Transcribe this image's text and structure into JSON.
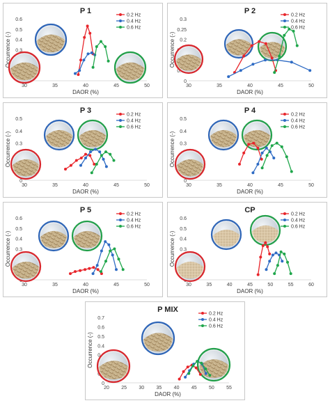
{
  "series_names": [
    "0.2 Hz",
    "0.4 Hz",
    "0.6 Hz"
  ],
  "colors": {
    "s02": "#e8252b",
    "s04": "#2e6bc4",
    "s06": "#1fa64b"
  },
  "chart_data": [
    {
      "type": "line",
      "title": "P 1",
      "xlabel": "DAOR (%)",
      "ylabel": "Occurrence (-)",
      "xlim": [
        30,
        50
      ],
      "ylim": [
        0,
        0.6
      ],
      "xticks": [
        "30",
        "35",
        "40",
        "45",
        "50"
      ],
      "yticks": [
        "0",
        "0.1",
        "0.2",
        "0.3",
        "0.4",
        "0.5",
        "0.6"
      ],
      "series": [
        {
          "name": "0.2 Hz",
          "x": [
            38.8,
            39.2,
            39.8,
            40.3,
            40.7,
            41.2
          ],
          "y": [
            0.06,
            0.2,
            0.42,
            0.53,
            0.46,
            0.26
          ]
        },
        {
          "name": "0.4 Hz",
          "x": [
            38.3,
            39.0,
            39.7,
            40.4,
            41.0,
            41.5
          ],
          "y": [
            0.07,
            0.1,
            0.2,
            0.26,
            0.27,
            0.25
          ]
        },
        {
          "name": "0.6 Hz",
          "x": [
            41.2,
            41.8,
            42.5,
            43.2,
            43.7
          ],
          "y": [
            0.13,
            0.33,
            0.38,
            0.33,
            0.19
          ]
        }
      ]
    },
    {
      "type": "line",
      "title": "P 2",
      "xlabel": "DAOR (%)",
      "ylabel": "Occurrence (-)",
      "xlim": [
        30,
        50
      ],
      "ylim": [
        0,
        0.3
      ],
      "xticks": [
        "30",
        "35",
        "40",
        "45",
        "50"
      ],
      "yticks": [
        "0",
        "0.05",
        "0.1",
        "0.15",
        "0.2",
        "0.25",
        "0.3"
      ],
      "series": [
        {
          "name": "0.2 Hz",
          "x": [
            37.5,
            39.0,
            40.3,
            41.5,
            42.6,
            43.6,
            44.2
          ],
          "y": [
            0.04,
            0.12,
            0.17,
            0.19,
            0.18,
            0.11,
            0.05
          ]
        },
        {
          "name": "0.4 Hz",
          "x": [
            36.5,
            38.5,
            40.5,
            42.5,
            44.5,
            46.8,
            49.8
          ],
          "y": [
            0.02,
            0.05,
            0.08,
            0.1,
            0.1,
            0.09,
            0.05
          ]
        },
        {
          "name": "0.6 Hz",
          "x": [
            44.0,
            44.8,
            45.6,
            46.4,
            47.1,
            47.7
          ],
          "y": [
            0.04,
            0.12,
            0.22,
            0.25,
            0.24,
            0.17
          ]
        }
      ]
    },
    {
      "type": "line",
      "title": "P 3",
      "xlabel": "DAOR (%)",
      "ylabel": "Occurrence (-)",
      "xlim": [
        30,
        50
      ],
      "ylim": [
        0,
        0.5
      ],
      "xticks": [
        "30",
        "35",
        "40",
        "45",
        "50"
      ],
      "yticks": [
        "0",
        "0.1",
        "0.2",
        "0.3",
        "0.4",
        "0.5"
      ],
      "series": [
        {
          "name": "0.2 Hz",
          "x": [
            36.7,
            37.6,
            38.5,
            39.3,
            40.0,
            40.7,
            41.4
          ],
          "y": [
            0.09,
            0.12,
            0.16,
            0.18,
            0.21,
            0.2,
            0.13
          ]
        },
        {
          "name": "0.4 Hz",
          "x": [
            39.2,
            40.0,
            40.8,
            41.6,
            42.3,
            42.9,
            43.4
          ],
          "y": [
            0.12,
            0.18,
            0.23,
            0.25,
            0.23,
            0.17,
            0.11
          ]
        },
        {
          "name": "0.6 Hz",
          "x": [
            41.0,
            41.8,
            42.6,
            43.3,
            44.0,
            44.6
          ],
          "y": [
            0.06,
            0.13,
            0.2,
            0.23,
            0.21,
            0.16
          ]
        }
      ]
    },
    {
      "type": "line",
      "title": "P 4",
      "xlabel": "DAOR (%)",
      "ylabel": "Occurrence (-)",
      "xlim": [
        30,
        50
      ],
      "ylim": [
        0,
        0.5
      ],
      "xticks": [
        "30",
        "35",
        "40",
        "45",
        "50"
      ],
      "yticks": [
        "0",
        "0.1",
        "0.2",
        "0.3",
        "0.4",
        "0.5"
      ],
      "series": [
        {
          "name": "0.2 Hz",
          "x": [
            38.3,
            39.0,
            39.8,
            40.6,
            41.3,
            41.9
          ],
          "y": [
            0.13,
            0.22,
            0.29,
            0.3,
            0.26,
            0.17
          ]
        },
        {
          "name": "0.4 Hz",
          "x": [
            40.5,
            41.3,
            42.0,
            42.7,
            43.3,
            43.9
          ],
          "y": [
            0.06,
            0.13,
            0.22,
            0.26,
            0.23,
            0.18
          ]
        },
        {
          "name": "0.6 Hz",
          "x": [
            42.0,
            42.8,
            43.6,
            44.4,
            45.2,
            46.0,
            46.8
          ],
          "y": [
            0.1,
            0.2,
            0.28,
            0.3,
            0.27,
            0.19,
            0.07
          ]
        }
      ]
    },
    {
      "type": "line",
      "title": "P 5",
      "xlabel": "DAOR (%)",
      "ylabel": "Occurrence (-)",
      "xlim": [
        30,
        50
      ],
      "ylim": [
        0,
        0.6
      ],
      "xticks": [
        "30",
        "35",
        "40",
        "45",
        "50"
      ],
      "yticks": [
        "0",
        "0.1",
        "0.2",
        "0.3",
        "0.4",
        "0.5",
        "0.6"
      ],
      "series": [
        {
          "name": "0.2 Hz",
          "x": [
            37.5,
            38.3,
            39.1,
            39.9,
            40.6,
            41.3,
            42.0,
            42.6
          ],
          "y": [
            0.06,
            0.08,
            0.09,
            0.1,
            0.11,
            0.12,
            0.1,
            0.06
          ]
        },
        {
          "name": "0.4 Hz",
          "x": [
            41.2,
            41.9,
            42.6,
            43.2,
            43.8,
            44.4,
            45.0
          ],
          "y": [
            0.06,
            0.14,
            0.28,
            0.37,
            0.34,
            0.24,
            0.1
          ]
        },
        {
          "name": "0.6 Hz",
          "x": [
            42.5,
            43.3,
            44.0,
            44.7,
            45.4,
            46.1
          ],
          "y": [
            0.08,
            0.18,
            0.28,
            0.3,
            0.2,
            0.1
          ]
        }
      ]
    },
    {
      "type": "line",
      "title": "CP",
      "xlabel": "DAOR (%)",
      "ylabel": "Occurrence (-)",
      "xlim": [
        30,
        60
      ],
      "ylim": [
        0,
        0.6
      ],
      "xticks": [
        "30",
        "35",
        "40",
        "45",
        "50",
        "55",
        "60"
      ],
      "yticks": [
        "0",
        "0.1",
        "0.2",
        "0.3",
        "0.4",
        "0.5",
        "0.6"
      ],
      "series": [
        {
          "name": "0.2 Hz",
          "x": [
            47.0,
            47.6,
            48.2,
            48.8,
            49.3,
            49.8
          ],
          "y": [
            0.05,
            0.22,
            0.33,
            0.36,
            0.32,
            0.25
          ]
        },
        {
          "name": "0.4 Hz",
          "x": [
            49.0,
            49.8,
            50.6,
            51.4,
            52.2,
            52.9
          ],
          "y": [
            0.1,
            0.18,
            0.24,
            0.26,
            0.24,
            0.18
          ]
        },
        {
          "name": "0.6 Hz",
          "x": [
            51.0,
            51.8,
            52.6,
            53.4,
            54.2,
            55.0
          ],
          "y": [
            0.06,
            0.14,
            0.27,
            0.25,
            0.17,
            0.06
          ]
        }
      ]
    },
    {
      "type": "line",
      "title": "P MIX",
      "xlabel": "DAOR (%)",
      "ylabel": "Occurrence (-)",
      "xlim": [
        20,
        55
      ],
      "ylim": [
        0,
        0.7
      ],
      "xticks": [
        "20",
        "25",
        "30",
        "35",
        "40",
        "45",
        "50",
        "55"
      ],
      "yticks": [
        "0",
        "0.1",
        "0.2",
        "0.3",
        "0.4",
        "0.5",
        "0.6",
        "0.7"
      ],
      "series": [
        {
          "name": "0.2 Hz",
          "x": [
            40.8,
            42.0,
            43.2,
            44.4,
            45.6,
            46.8
          ],
          "y": [
            0.04,
            0.12,
            0.17,
            0.19,
            0.16,
            0.09
          ]
        },
        {
          "name": "0.4 Hz",
          "x": [
            42.5,
            43.7,
            44.9,
            46.1,
            47.3,
            48.4
          ],
          "y": [
            0.06,
            0.13,
            0.2,
            0.23,
            0.2,
            0.1
          ]
        },
        {
          "name": "0.6 Hz",
          "x": [
            43.5,
            44.7,
            45.9,
            47.1,
            48.3,
            49.5
          ],
          "y": [
            0.1,
            0.18,
            0.23,
            0.21,
            0.15,
            0.08
          ]
        }
      ]
    }
  ]
}
